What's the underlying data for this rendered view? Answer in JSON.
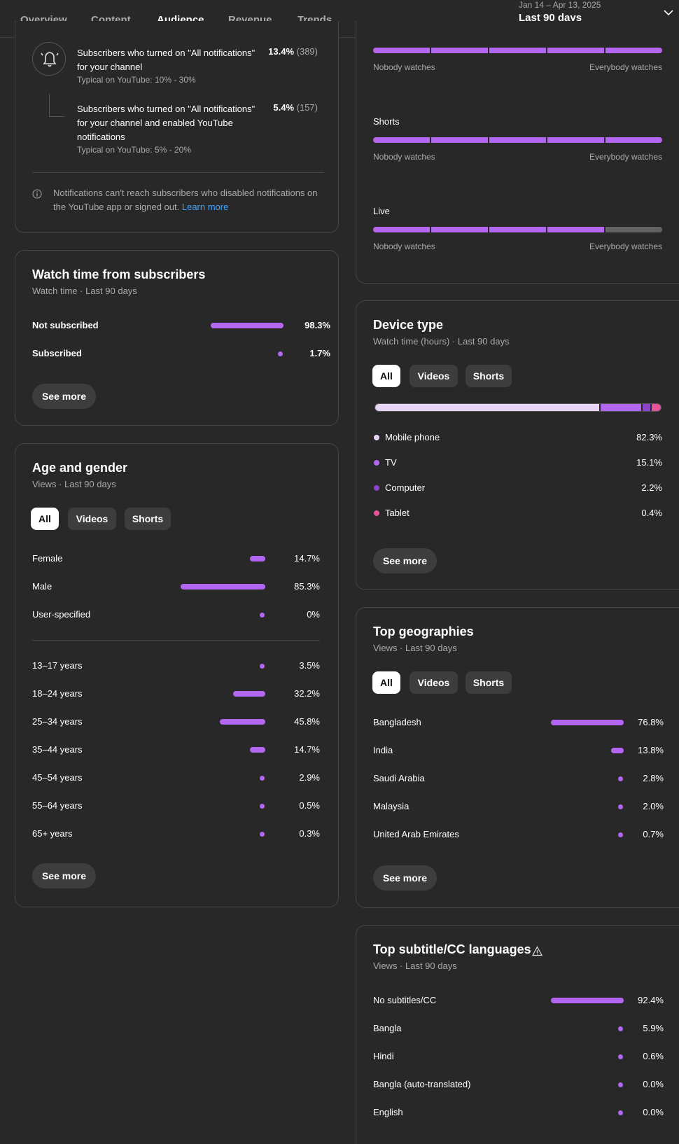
{
  "header": {
    "tabs": [
      "Overview",
      "Content",
      "Audience",
      "Revenue",
      "Trends"
    ],
    "active_tab": "Audience",
    "date_range": "Jan 14 – Apr 13, 2025",
    "period": "Last 90 days"
  },
  "notifications": {
    "row1": {
      "label": "Subscribers who turned on \"All notifications\" for your channel",
      "value": "13.4%",
      "count": "(389)",
      "typical": "Typical on YouTube: 10% - 30%"
    },
    "row2": {
      "label": "Subscribers who turned on \"All notifications\" for your channel and enabled YouTube notifications",
      "value": "5.4%",
      "count": "(157)",
      "typical": "Typical on YouTube: 5% - 20%"
    },
    "note": "Notifications can't reach subscribers who disabled notifications on the YouTube app or signed out.",
    "learn_more": "Learn more"
  },
  "content_watch": {
    "left_label": "Nobody watches",
    "right_label": "Everybody watches",
    "rows": [
      {
        "label": "",
        "filled_segments": 5
      },
      {
        "label": "Shorts",
        "filled_segments": 5
      },
      {
        "label": "Live",
        "filled_segments": 4
      }
    ]
  },
  "watch_time_subs": {
    "title": "Watch time from subscribers",
    "subtitle": "Watch time · Last 90 days",
    "rows": [
      {
        "label": "Not subscribed",
        "value": "98.3%"
      },
      {
        "label": "Subscribed",
        "value": "1.7%"
      }
    ],
    "see_more": "See more"
  },
  "device_type": {
    "title": "Device type",
    "subtitle": "Watch time (hours) · Last 90 days",
    "filters": [
      "All",
      "Videos",
      "Shorts"
    ],
    "items": [
      {
        "label": "Mobile phone",
        "value": "82.3%",
        "color": "#e8d5f5"
      },
      {
        "label": "TV",
        "value": "15.1%",
        "color": "#b366f2"
      },
      {
        "label": "Computer",
        "value": "2.2%",
        "color": "#8b44c9"
      },
      {
        "label": "Tablet",
        "value": "0.4%",
        "color": "#e8549a"
      }
    ],
    "see_more": "See more"
  },
  "age_gender": {
    "title": "Age and gender",
    "subtitle": "Views · Last 90 days",
    "filters": [
      "All",
      "Videos",
      "Shorts"
    ],
    "gender": [
      {
        "label": "Female",
        "value": "14.7%"
      },
      {
        "label": "Male",
        "value": "85.3%"
      },
      {
        "label": "User-specified",
        "value": "0%"
      }
    ],
    "ages": [
      {
        "label": "13–17 years",
        "value": "3.5%"
      },
      {
        "label": "18–24 years",
        "value": "32.2%"
      },
      {
        "label": "25–34 years",
        "value": "45.8%"
      },
      {
        "label": "35–44 years",
        "value": "14.7%"
      },
      {
        "label": "45–54 years",
        "value": "2.9%"
      },
      {
        "label": "55–64 years",
        "value": "0.5%"
      },
      {
        "label": "65+ years",
        "value": "0.3%"
      }
    ],
    "see_more": "See more"
  },
  "geographies": {
    "title": "Top geographies",
    "subtitle": "Views · Last 90 days",
    "filters": [
      "All",
      "Videos",
      "Shorts"
    ],
    "rows": [
      {
        "label": "Bangladesh",
        "value": "76.8%"
      },
      {
        "label": "India",
        "value": "13.8%"
      },
      {
        "label": "Saudi Arabia",
        "value": "2.8%"
      },
      {
        "label": "Malaysia",
        "value": "2.0%"
      },
      {
        "label": "United Arab Emirates",
        "value": "0.7%"
      }
    ],
    "see_more": "See more"
  },
  "subtitles": {
    "title": "Top subtitle/CC languages",
    "subtitle": "Views · Last 90 days",
    "rows": [
      {
        "label": "No subtitles/CC",
        "value": "92.4%"
      },
      {
        "label": "Bangla",
        "value": "5.9%"
      },
      {
        "label": "Hindi",
        "value": "0.6%"
      },
      {
        "label": "Bangla (auto-translated)",
        "value": "0.0%"
      },
      {
        "label": "English",
        "value": "0.0%"
      }
    ]
  }
}
